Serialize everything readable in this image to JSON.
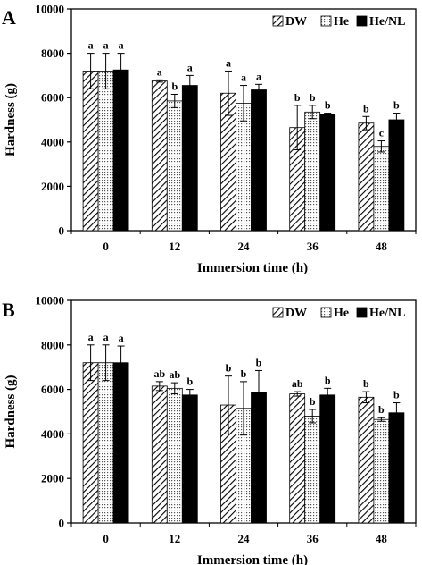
{
  "chart_data": [
    {
      "type": "bar",
      "panel_label": "A",
      "categories": [
        "0",
        "12",
        "24",
        "36",
        "48"
      ],
      "xlabel": "Immersion time (h)",
      "ylabel": "Hardness (g)",
      "ylim": [
        0,
        10000
      ],
      "yticks": [
        "0",
        "2000",
        "4000",
        "6000",
        "8000",
        "10000"
      ],
      "legend_position": "top-right",
      "series": [
        {
          "name": "DW",
          "pattern": "diagonal",
          "values": [
            7200,
            6750,
            6200,
            4650,
            4850
          ],
          "errors": [
            800,
            50,
            1000,
            1000,
            300
          ],
          "labels": [
            "a",
            "a",
            "a",
            "b",
            "b"
          ]
        },
        {
          "name": "He",
          "pattern": "dotted",
          "values": [
            7200,
            5850,
            5750,
            5350,
            3800
          ],
          "errors": [
            800,
            300,
            800,
            300,
            250
          ],
          "labels": [
            "a",
            "b",
            "a",
            "b",
            "c"
          ]
        },
        {
          "name": "He/NL",
          "pattern": "solid",
          "values": [
            7250,
            6550,
            6350,
            5250,
            5000
          ],
          "errors": [
            750,
            450,
            250,
            50,
            300
          ],
          "labels": [
            "a",
            "a",
            "a",
            "b",
            "b"
          ]
        }
      ]
    },
    {
      "type": "bar",
      "panel_label": "B",
      "categories": [
        "0",
        "12",
        "24",
        "36",
        "48"
      ],
      "xlabel": "Immersion time (h)",
      "ylabel": "Hardness (g)",
      "ylim": [
        0,
        10000
      ],
      "yticks": [
        "0",
        "2000",
        "4000",
        "6000",
        "8000",
        "10000"
      ],
      "legend_position": "top-right",
      "series": [
        {
          "name": "DW",
          "pattern": "diagonal",
          "values": [
            7200,
            6150,
            5300,
            5800,
            5650
          ],
          "errors": [
            800,
            200,
            1300,
            100,
            250
          ],
          "labels": [
            "a",
            "ab",
            "b",
            "ab",
            "b"
          ]
        },
        {
          "name": "He",
          "pattern": "dotted",
          "values": [
            7200,
            6050,
            5150,
            4800,
            4650
          ],
          "errors": [
            800,
            250,
            1200,
            300,
            80
          ],
          "labels": [
            "a",
            "ab",
            "b",
            "b",
            "b"
          ]
        },
        {
          "name": "He/NL",
          "pattern": "solid",
          "values": [
            7200,
            5750,
            5850,
            5750,
            4950
          ],
          "errors": [
            750,
            250,
            1000,
            300,
            450
          ],
          "labels": [
            "a",
            "b",
            "b",
            "b",
            "b"
          ]
        }
      ]
    }
  ]
}
